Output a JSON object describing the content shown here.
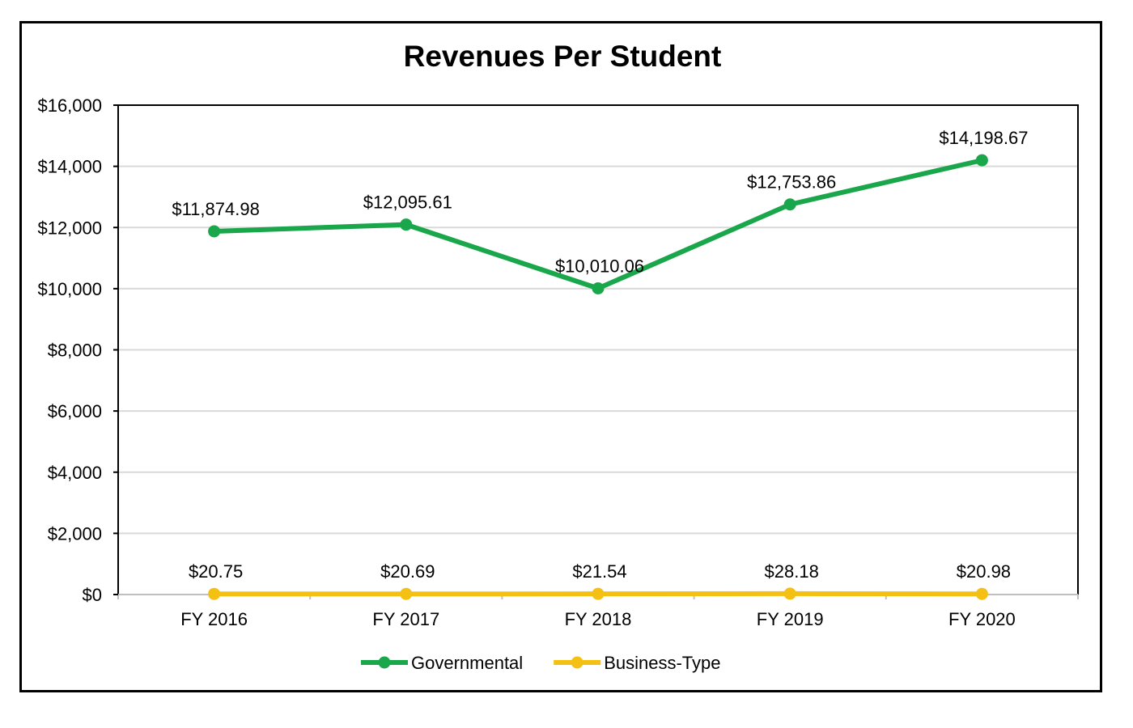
{
  "chart_data": {
    "type": "line",
    "title": "Revenues Per Student",
    "categories": [
      "FY 2016",
      "FY 2017",
      "FY 2018",
      "FY 2019",
      "FY 2020"
    ],
    "series": [
      {
        "name": "Governmental",
        "color": "#1aa64a",
        "values": [
          11874.98,
          12095.61,
          10010.06,
          12753.86,
          14198.67
        ],
        "labels": [
          "$11,874.98",
          "$12,095.61",
          "$10,010.06",
          "$12,753.86",
          "$14,198.67"
        ]
      },
      {
        "name": "Business-Type",
        "color": "#f5c014",
        "values": [
          20.75,
          20.69,
          21.54,
          28.18,
          20.98
        ],
        "labels": [
          "$20.75",
          "$20.69",
          "$21.54",
          "$28.18",
          "$20.98"
        ]
      }
    ],
    "ylim": [
      0,
      16000
    ],
    "yticks": [
      0,
      2000,
      4000,
      6000,
      8000,
      10000,
      12000,
      14000,
      16000
    ],
    "ytick_labels": [
      "$0",
      "$2,000",
      "$4,000",
      "$6,000",
      "$8,000",
      "$10,000",
      "$12,000",
      "$14,000",
      "$16,000"
    ],
    "grid": true,
    "legend": "bottom"
  }
}
